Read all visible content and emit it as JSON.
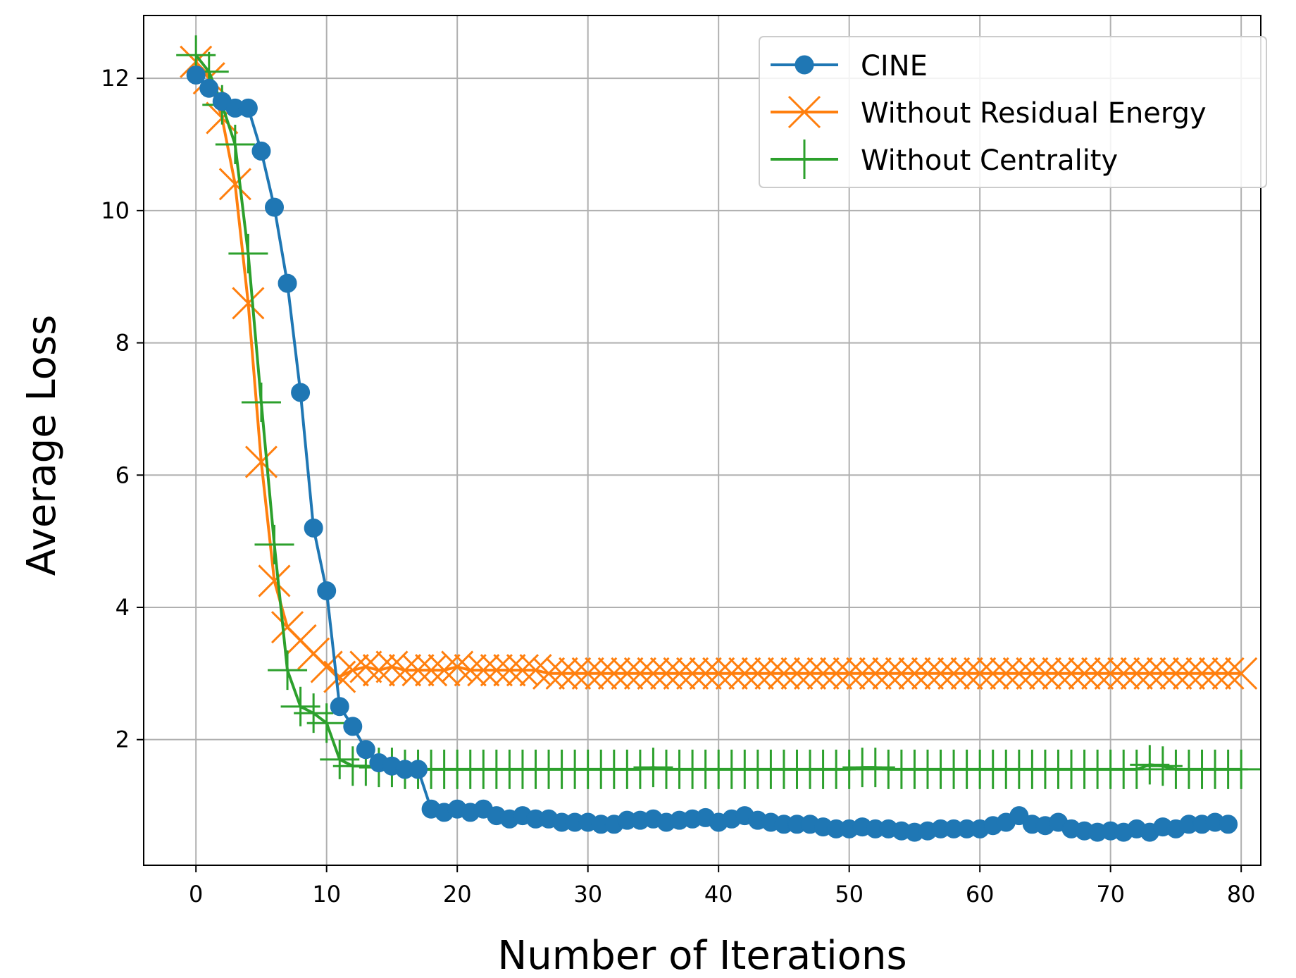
{
  "chart_data": {
    "type": "line",
    "xlabel": "Number of Iterations",
    "ylabel": "Average Loss",
    "xlim": [
      -4,
      81.5
    ],
    "ylim": [
      0.1,
      12.95
    ],
    "grid": true,
    "legend_position": "top-right",
    "xticks": [
      0,
      10,
      20,
      30,
      40,
      50,
      60,
      70,
      80
    ],
    "yticks": [
      2,
      4,
      6,
      8,
      10,
      12
    ],
    "series": [
      {
        "name": "CINE",
        "color": "#1f77b4",
        "marker": "circle",
        "x": [
          0,
          1,
          2,
          3,
          4,
          5,
          6,
          7,
          8,
          9,
          10,
          11,
          12,
          13,
          14,
          15,
          16,
          17,
          18,
          19,
          20,
          21,
          22,
          23,
          24,
          25,
          26,
          27,
          28,
          29,
          30,
          31,
          32,
          33,
          34,
          35,
          36,
          37,
          38,
          39,
          40,
          41,
          42,
          43,
          44,
          45,
          46,
          47,
          48,
          49,
          50,
          51,
          52,
          53,
          54,
          55,
          56,
          57,
          58,
          59,
          60,
          61,
          62,
          63,
          64,
          65,
          66,
          67,
          68,
          69,
          70,
          71,
          72,
          73,
          74,
          75,
          76,
          77,
          78,
          79
        ],
        "y": [
          12.05,
          11.85,
          11.65,
          11.55,
          11.55,
          10.9,
          10.05,
          8.9,
          7.25,
          5.2,
          4.25,
          2.5,
          2.2,
          1.85,
          1.65,
          1.6,
          1.55,
          1.55,
          0.95,
          0.9,
          0.95,
          0.9,
          0.95,
          0.85,
          0.8,
          0.85,
          0.8,
          0.8,
          0.75,
          0.75,
          0.75,
          0.72,
          0.72,
          0.78,
          0.78,
          0.8,
          0.75,
          0.78,
          0.8,
          0.82,
          0.75,
          0.8,
          0.85,
          0.78,
          0.75,
          0.72,
          0.72,
          0.72,
          0.68,
          0.65,
          0.65,
          0.68,
          0.65,
          0.65,
          0.62,
          0.6,
          0.62,
          0.65,
          0.65,
          0.65,
          0.65,
          0.7,
          0.75,
          0.85,
          0.72,
          0.7,
          0.75,
          0.65,
          0.62,
          0.6,
          0.62,
          0.6,
          0.65,
          0.6,
          0.68,
          0.65,
          0.72,
          0.72,
          0.75,
          0.72
        ]
      },
      {
        "name": "Without Residual Energy",
        "color": "#ff7f0e",
        "marker": "x",
        "x": [
          0,
          1,
          2,
          3,
          4,
          5,
          6,
          7,
          8,
          9,
          10,
          11,
          12,
          13,
          14,
          15,
          16,
          17,
          18,
          19,
          20,
          21,
          22,
          23,
          24,
          25,
          26,
          27,
          28,
          29,
          30,
          31,
          32,
          33,
          34,
          35,
          36,
          37,
          38,
          39,
          40,
          41,
          42,
          43,
          44,
          45,
          46,
          47,
          48,
          49,
          50,
          51,
          52,
          53,
          54,
          55,
          56,
          57,
          58,
          59,
          60,
          61,
          62,
          63,
          64,
          65,
          66,
          67,
          68,
          69,
          70,
          71,
          72,
          73,
          74,
          75,
          76,
          77,
          78,
          79,
          80
        ],
        "y": [
          12.25,
          12.0,
          11.4,
          10.4,
          8.6,
          6.2,
          4.4,
          3.7,
          3.5,
          3.3,
          3.1,
          2.95,
          3.05,
          3.1,
          3.05,
          3.1,
          3.05,
          3.05,
          3.05,
          3.05,
          3.1,
          3.05,
          3.05,
          3.05,
          3.05,
          3.05,
          3.05,
          3.0,
          3.0,
          3.0,
          3.0,
          3.0,
          3.0,
          3.0,
          3.0,
          3.0,
          3.0,
          3.0,
          3.0,
          3.0,
          3.0,
          3.0,
          3.0,
          3.0,
          3.0,
          3.0,
          3.0,
          3.0,
          3.0,
          3.0,
          3.0,
          3.0,
          3.0,
          3.0,
          3.0,
          3.0,
          3.0,
          3.0,
          3.0,
          3.0,
          3.0,
          3.0,
          3.0,
          3.0,
          3.0,
          3.0,
          3.0,
          3.0,
          3.0,
          3.0,
          3.0,
          3.0,
          3.0,
          3.0,
          3.0,
          3.0,
          3.0,
          3.0,
          3.0,
          3.0,
          3.0
        ]
      },
      {
        "name": "Without Centrality",
        "color": "#2ca02c",
        "marker": "plus",
        "x": [
          0,
          1,
          2,
          3,
          4,
          5,
          6,
          7,
          8,
          9,
          10,
          11,
          12,
          13,
          14,
          15,
          16,
          17,
          18,
          19,
          20,
          21,
          22,
          23,
          24,
          25,
          26,
          27,
          28,
          29,
          30,
          31,
          32,
          33,
          34,
          35,
          36,
          37,
          38,
          39,
          40,
          41,
          42,
          43,
          44,
          45,
          46,
          47,
          48,
          49,
          50,
          51,
          52,
          53,
          54,
          55,
          56,
          57,
          58,
          59,
          60,
          61,
          62,
          63,
          64,
          65,
          66,
          67,
          68,
          69,
          70,
          71,
          72,
          73,
          74,
          75,
          76,
          77,
          78,
          79,
          80
        ],
        "y": [
          12.35,
          12.1,
          11.6,
          11.0,
          9.35,
          7.1,
          4.95,
          3.05,
          2.5,
          2.4,
          2.25,
          1.7,
          1.6,
          1.6,
          1.58,
          1.58,
          1.55,
          1.55,
          1.55,
          1.55,
          1.55,
          1.55,
          1.55,
          1.55,
          1.55,
          1.55,
          1.55,
          1.55,
          1.55,
          1.55,
          1.55,
          1.55,
          1.55,
          1.55,
          1.55,
          1.58,
          1.55,
          1.55,
          1.55,
          1.55,
          1.55,
          1.55,
          1.55,
          1.55,
          1.55,
          1.55,
          1.55,
          1.55,
          1.55,
          1.55,
          1.55,
          1.58,
          1.58,
          1.55,
          1.55,
          1.55,
          1.55,
          1.55,
          1.55,
          1.55,
          1.55,
          1.55,
          1.55,
          1.55,
          1.55,
          1.55,
          1.55,
          1.55,
          1.55,
          1.55,
          1.55,
          1.55,
          1.55,
          1.62,
          1.6,
          1.55,
          1.55,
          1.55,
          1.55,
          1.55,
          1.55
        ]
      }
    ]
  }
}
